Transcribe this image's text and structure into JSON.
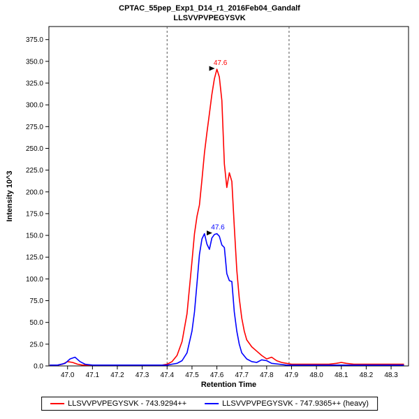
{
  "header": {
    "title": "CPTAC_55pep_Exp1_D14_r1_2016Feb04_Gandalf",
    "subtitle": "LLSVVPVPEGYSVK"
  },
  "chart_data": {
    "type": "line",
    "title": "CPTAC_55pep_Exp1_D14_r1_2016Feb04_Gandalf",
    "subtitle": "LLSVVPVPEGYSVK",
    "xlabel": "Retention Time",
    "ylabel": "Intensity 10^3",
    "xlim": [
      46.925,
      48.37
    ],
    "ylim": [
      0,
      390
    ],
    "x_ticks": [
      "47.0",
      "47.1",
      "47.2",
      "47.3",
      "47.4",
      "47.5",
      "47.6",
      "47.7",
      "47.8",
      "47.9",
      "48.0",
      "48.1",
      "48.2",
      "48.3"
    ],
    "y_ticks": [
      "0.0",
      "25.0",
      "50.0",
      "75.0",
      "100.0",
      "125.0",
      "150.0",
      "175.0",
      "200.0",
      "225.0",
      "250.0",
      "275.0",
      "300.0",
      "325.0",
      "350.0",
      "375.0"
    ],
    "grid": "off",
    "legend_position": "bottom",
    "integration_boundaries": [
      47.4,
      47.89
    ],
    "boundary_style": {
      "color": "#555555",
      "dash": "3,3"
    },
    "series": [
      {
        "name": "LLSVVPVPEGYSVK - 743.9294++",
        "color": "#ff0000",
        "peak_annotation": {
          "label": "47.6",
          "x": 47.6,
          "y": 341
        },
        "points": [
          [
            46.93,
            1
          ],
          [
            46.96,
            1
          ],
          [
            46.98,
            2
          ],
          [
            47.0,
            5
          ],
          [
            47.02,
            4
          ],
          [
            47.04,
            2
          ],
          [
            47.06,
            1
          ],
          [
            47.1,
            1
          ],
          [
            47.15,
            1
          ],
          [
            47.2,
            1
          ],
          [
            47.25,
            1
          ],
          [
            47.3,
            1
          ],
          [
            47.35,
            1
          ],
          [
            47.38,
            1
          ],
          [
            47.4,
            2
          ],
          [
            47.42,
            5
          ],
          [
            47.44,
            12
          ],
          [
            47.46,
            28
          ],
          [
            47.48,
            60
          ],
          [
            47.5,
            120
          ],
          [
            47.51,
            152
          ],
          [
            47.52,
            172
          ],
          [
            47.53,
            185
          ],
          [
            47.54,
            214
          ],
          [
            47.55,
            245
          ],
          [
            47.56,
            268
          ],
          [
            47.57,
            290
          ],
          [
            47.58,
            312
          ],
          [
            47.59,
            330
          ],
          [
            47.6,
            341
          ],
          [
            47.61,
            332
          ],
          [
            47.62,
            305
          ],
          [
            47.63,
            232
          ],
          [
            47.64,
            205
          ],
          [
            47.65,
            222
          ],
          [
            47.66,
            212
          ],
          [
            47.67,
            160
          ],
          [
            47.68,
            110
          ],
          [
            47.69,
            78
          ],
          [
            47.7,
            55
          ],
          [
            47.71,
            40
          ],
          [
            47.72,
            30
          ],
          [
            47.74,
            22
          ],
          [
            47.76,
            17
          ],
          [
            47.78,
            12
          ],
          [
            47.8,
            8
          ],
          [
            47.82,
            10
          ],
          [
            47.84,
            6
          ],
          [
            47.86,
            4
          ],
          [
            47.88,
            3
          ],
          [
            47.9,
            2
          ],
          [
            47.95,
            2
          ],
          [
            48.0,
            2
          ],
          [
            48.05,
            2
          ],
          [
            48.08,
            3
          ],
          [
            48.1,
            4
          ],
          [
            48.12,
            3
          ],
          [
            48.15,
            2
          ],
          [
            48.2,
            2
          ],
          [
            48.25,
            2
          ],
          [
            48.3,
            2
          ],
          [
            48.35,
            2
          ]
        ]
      },
      {
        "name": "LLSVVPVPEGYSVK - 747.9365++ (heavy)",
        "color": "#0000ff",
        "peak_annotation": {
          "label": "47.6",
          "x": 47.59,
          "y": 152
        },
        "points": [
          [
            46.93,
            1
          ],
          [
            46.96,
            1
          ],
          [
            46.99,
            3
          ],
          [
            47.01,
            8
          ],
          [
            47.03,
            10
          ],
          [
            47.05,
            5
          ],
          [
            47.07,
            2
          ],
          [
            47.1,
            1
          ],
          [
            47.15,
            1
          ],
          [
            47.2,
            1
          ],
          [
            47.25,
            1
          ],
          [
            47.3,
            1
          ],
          [
            47.35,
            1
          ],
          [
            47.4,
            1
          ],
          [
            47.42,
            2
          ],
          [
            47.44,
            3
          ],
          [
            47.46,
            6
          ],
          [
            47.48,
            15
          ],
          [
            47.5,
            40
          ],
          [
            47.51,
            62
          ],
          [
            47.52,
            95
          ],
          [
            47.53,
            128
          ],
          [
            47.54,
            146
          ],
          [
            47.55,
            152
          ],
          [
            47.56,
            140
          ],
          [
            47.57,
            134
          ],
          [
            47.58,
            147
          ],
          [
            47.59,
            151
          ],
          [
            47.6,
            152
          ],
          [
            47.61,
            149
          ],
          [
            47.62,
            139
          ],
          [
            47.63,
            136
          ],
          [
            47.64,
            106
          ],
          [
            47.65,
            98
          ],
          [
            47.66,
            97
          ],
          [
            47.67,
            62
          ],
          [
            47.68,
            40
          ],
          [
            47.69,
            25
          ],
          [
            47.7,
            15
          ],
          [
            47.72,
            8
          ],
          [
            47.74,
            5
          ],
          [
            47.76,
            4
          ],
          [
            47.78,
            7
          ],
          [
            47.8,
            6
          ],
          [
            47.82,
            3
          ],
          [
            47.85,
            2
          ],
          [
            47.88,
            1
          ],
          [
            47.9,
            1
          ],
          [
            48.0,
            1
          ],
          [
            48.1,
            1
          ],
          [
            48.2,
            1
          ],
          [
            48.3,
            1
          ],
          [
            48.35,
            1
          ]
        ]
      }
    ]
  }
}
